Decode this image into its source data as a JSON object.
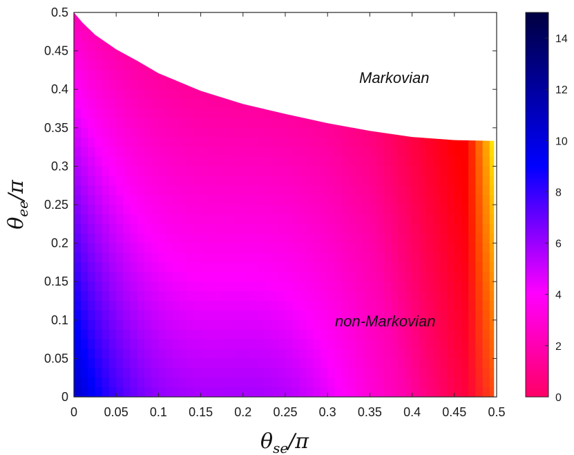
{
  "chart_data": {
    "type": "heatmap",
    "title": "",
    "xlabel": "θ_se/π",
    "ylabel": "θ_ee/π",
    "xlim": [
      0,
      0.5
    ],
    "ylim": [
      0,
      0.5
    ],
    "x_ticks": [
      "0",
      "0.05",
      "0.1",
      "0.15",
      "0.2",
      "0.25",
      "0.3",
      "0.35",
      "0.4",
      "0.45",
      "0.5"
    ],
    "y_ticks": [
      "0",
      "0.05",
      "0.1",
      "0.15",
      "0.2",
      "0.25",
      "0.3",
      "0.35",
      "0.4",
      "0.45",
      "0.5"
    ],
    "colorbar": {
      "range": [
        0,
        15
      ],
      "ticks": [
        "0",
        "2",
        "4",
        "6",
        "8",
        "10",
        "12",
        "14"
      ],
      "colors": [
        "#ff0066",
        "#ff00ff",
        "#0000ff",
        "#000040"
      ]
    },
    "boundary": {
      "x": [
        0.0,
        0.01,
        0.025,
        0.05,
        0.075,
        0.1,
        0.15,
        0.2,
        0.25,
        0.3,
        0.35,
        0.4,
        0.45,
        0.497
      ],
      "y": [
        0.5,
        0.487,
        0.471,
        0.452,
        0.437,
        0.421,
        0.398,
        0.381,
        0.368,
        0.356,
        0.346,
        0.338,
        0.334,
        0.333
      ]
    },
    "hot_edge_colors": [
      "#ff0000",
      "#ffff00"
    ],
    "regions": {
      "markovian": "Markovian",
      "non_markovian": "non-Markovian"
    }
  }
}
